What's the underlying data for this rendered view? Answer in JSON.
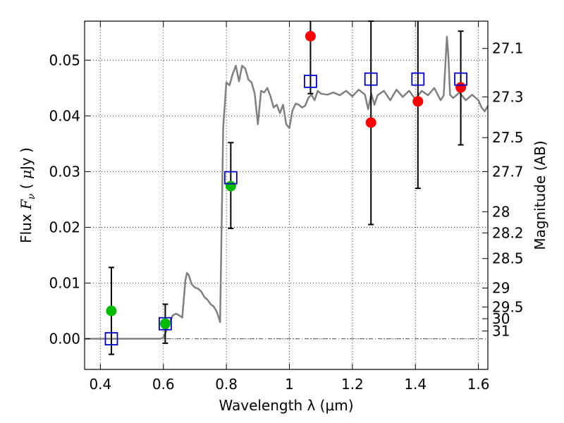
{
  "chart_data": {
    "type": "scatter",
    "title": "",
    "xlabel": "Wavelength  λ (μm)",
    "ylabel": "Flux  Fν  ( μJy )",
    "ylabel_parts": {
      "pre": "Flux ",
      "sym": "F",
      "sub": "ν",
      "mid": "  ( ",
      "mu": "μ",
      "post": "Jy )"
    },
    "y2label": "Magnitude (AB)",
    "xlim": [
      0.35,
      1.63
    ],
    "ylim": [
      -0.0055,
      0.057
    ],
    "grid": true,
    "x_ticks": [
      0.4,
      0.6,
      0.8,
      1.0,
      1.2,
      1.4,
      1.6
    ],
    "x_tick_labels": [
      "0.4",
      "0.6",
      "0.8",
      "1",
      "1.2",
      "1.4",
      "1.6"
    ],
    "y_ticks": [
      0.0,
      0.01,
      0.02,
      0.03,
      0.04,
      0.05
    ],
    "y_tick_labels": [
      "0.00",
      "0.01",
      "0.02",
      "0.03",
      "0.04",
      "0.05"
    ],
    "mag_ticks": [
      {
        "label": "27.1",
        "flux": 0.0521
      },
      {
        "label": "27.3",
        "flux": 0.0434
      },
      {
        "label": "27.5",
        "flux": 0.0361
      },
      {
        "label": "27.7",
        "flux": 0.03
      },
      {
        "label": "28",
        "flux": 0.0228
      },
      {
        "label": "28.2",
        "flux": 0.019
      },
      {
        "label": "28.5",
        "flux": 0.0144
      },
      {
        "label": "29",
        "flux": 0.0091
      },
      {
        "label": "29.5",
        "flux": 0.0057
      },
      {
        "label": "30",
        "flux": 0.0036
      },
      {
        "label": "31",
        "flux": 0.0014
      }
    ],
    "model_spectrum": {
      "color": "#808080",
      "x": [
        0.35,
        0.59,
        0.6,
        0.61,
        0.62,
        0.63,
        0.64,
        0.65,
        0.66,
        0.67,
        0.675,
        0.68,
        0.69,
        0.7,
        0.71,
        0.72,
        0.73,
        0.74,
        0.75,
        0.76,
        0.77,
        0.78,
        0.79,
        0.8,
        0.81,
        0.82,
        0.83,
        0.84,
        0.85,
        0.86,
        0.87,
        0.88,
        0.89,
        0.9,
        0.91,
        0.92,
        0.93,
        0.94,
        0.95,
        0.96,
        0.97,
        0.98,
        0.99,
        1.0,
        1.01,
        1.02,
        1.03,
        1.04,
        1.05,
        1.06,
        1.07,
        1.08,
        1.09,
        1.1,
        1.12,
        1.14,
        1.16,
        1.18,
        1.2,
        1.22,
        1.24,
        1.25,
        1.26,
        1.27,
        1.28,
        1.3,
        1.32,
        1.34,
        1.36,
        1.38,
        1.4,
        1.42,
        1.44,
        1.46,
        1.48,
        1.49,
        1.5,
        1.505,
        1.51,
        1.52,
        1.54,
        1.56,
        1.58,
        1.6,
        1.61,
        1.62,
        1.63
      ],
      "y": [
        0.0,
        0.0,
        0.0002,
        0.0015,
        0.003,
        0.0042,
        0.0045,
        0.0042,
        0.0038,
        0.0105,
        0.0118,
        0.0115,
        0.0098,
        0.0092,
        0.009,
        0.0085,
        0.0075,
        0.007,
        0.0062,
        0.0058,
        0.0048,
        0.003,
        0.038,
        0.046,
        0.0455,
        0.0475,
        0.049,
        0.0462,
        0.049,
        0.0485,
        0.0465,
        0.046,
        0.044,
        0.0385,
        0.0445,
        0.0442,
        0.045,
        0.0435,
        0.0415,
        0.042,
        0.0405,
        0.042,
        0.0385,
        0.0378,
        0.041,
        0.0422,
        0.042,
        0.0415,
        0.0418,
        0.0432,
        0.0438,
        0.0428,
        0.0445,
        0.044,
        0.0438,
        0.0442,
        0.0437,
        0.0445,
        0.0435,
        0.0447,
        0.0438,
        0.0412,
        0.044,
        0.042,
        0.0437,
        0.0445,
        0.0428,
        0.0447,
        0.0434,
        0.0445,
        0.043,
        0.0445,
        0.0437,
        0.045,
        0.0428,
        0.0437,
        0.0542,
        0.0505,
        0.0438,
        0.0432,
        0.0442,
        0.0428,
        0.0438,
        0.0428,
        0.0415,
        0.0408,
        0.0418
      ]
    },
    "series": [
      {
        "marker": "circle",
        "color": "#00bb00",
        "points": [
          {
            "x": 0.435,
            "y": 0.005
          },
          {
            "x": 0.606,
            "y": 0.0027
          },
          {
            "x": 0.814,
            "y": 0.0274
          }
        ]
      },
      {
        "marker": "circle",
        "color": "#ff0000",
        "points": [
          {
            "x": 1.067,
            "y": 0.0543
          },
          {
            "x": 1.259,
            "y": 0.0388
          },
          {
            "x": 1.408,
            "y": 0.0426
          },
          {
            "x": 1.544,
            "y": 0.0451
          }
        ]
      },
      {
        "marker": "open-square",
        "color": "#0000cc",
        "points": [
          {
            "x": 0.435,
            "y": 0.0
          },
          {
            "x": 0.606,
            "y": 0.0027
          },
          {
            "x": 0.814,
            "y": 0.0289
          },
          {
            "x": 1.067,
            "y": 0.0462
          },
          {
            "x": 1.259,
            "y": 0.0466
          },
          {
            "x": 1.408,
            "y": 0.0466
          },
          {
            "x": 1.544,
            "y": 0.0466
          }
        ]
      }
    ],
    "error_bars": {
      "color": "#000000",
      "bars": [
        {
          "x": 0.435,
          "low": -0.0028,
          "high": 0.0128
        },
        {
          "x": 0.606,
          "low": -0.0008,
          "high": 0.0062
        },
        {
          "x": 0.814,
          "low": 0.0198,
          "high": 0.0352
        },
        {
          "x": 1.067,
          "low": 0.044,
          "high": 0.058
        },
        {
          "x": 1.259,
          "low": 0.0205,
          "high": 0.057
        },
        {
          "x": 1.408,
          "low": 0.027,
          "high": 0.058
        },
        {
          "x": 1.544,
          "low": 0.0348,
          "high": 0.0552
        }
      ]
    },
    "zero_line": {
      "y": 0.0,
      "style": "dash-dot",
      "color": "#555555"
    }
  }
}
